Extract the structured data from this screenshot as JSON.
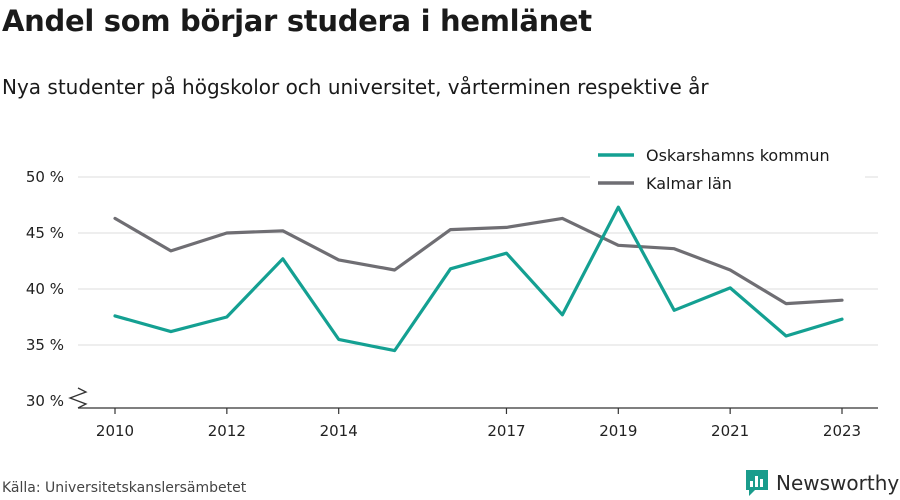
{
  "header": {
    "title": "Andel som börjar studera i hemlänet",
    "subtitle": "Nya studenter på högskolor och universitet, vårterminen respektive år"
  },
  "footer": {
    "source": "Källa: Universitetskanslersämbetet",
    "brand": "Newsworthy",
    "brand_icon": "bar-chart-logo-icon",
    "brand_color": "#1a9c8c"
  },
  "chart_data": {
    "type": "line",
    "title": "Andel som börjar studera i hemlänet",
    "subtitle": "Nya studenter på högskolor och universitet, vårterminen respektive år",
    "x": [
      2010,
      2011,
      2012,
      2013,
      2014,
      2015,
      2016,
      2017,
      2018,
      2019,
      2020,
      2021,
      2022,
      2023
    ],
    "x_ticks": [
      2010,
      2012,
      2014,
      2017,
      2019,
      2021,
      2023
    ],
    "ylim": [
      30,
      50
    ],
    "y_ticks": [
      30,
      35,
      40,
      45,
      50
    ],
    "y_tick_labels": [
      "30 %",
      "35 %",
      "40 %",
      "45 %",
      "50 %"
    ],
    "grid": true,
    "legend_position": "top-right",
    "axis_break": true,
    "series": [
      {
        "name": "Oskarshamns kommun",
        "color": "#14a092",
        "values": [
          37.6,
          36.2,
          37.5,
          42.7,
          35.5,
          34.5,
          41.8,
          43.2,
          37.7,
          47.3,
          38.1,
          40.1,
          35.8,
          37.3
        ]
      },
      {
        "name": "Kalmar län",
        "color": "#6f6e73",
        "values": [
          46.3,
          43.4,
          45.0,
          45.2,
          42.6,
          41.7,
          45.3,
          45.5,
          46.3,
          43.9,
          43.6,
          41.7,
          38.7,
          39.0
        ]
      }
    ]
  }
}
